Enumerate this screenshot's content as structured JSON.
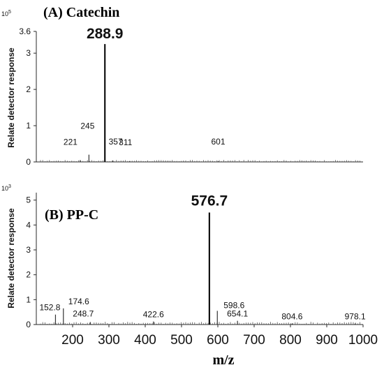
{
  "chart_data": [
    {
      "type": "bar",
      "title": "(A) Catechin",
      "ylabel": "Relate detector response",
      "y_exponent_base": "10",
      "y_exponent_power": "5",
      "xlim": [
        100,
        1000
      ],
      "ylim": [
        0,
        3.6
      ],
      "yticks": [
        {
          "value": 0,
          "label": "0"
        },
        {
          "value": 1,
          "label": "1"
        },
        {
          "value": 2,
          "label": "2"
        },
        {
          "value": 3,
          "label": "3"
        },
        {
          "value": 3.6,
          "label": "3.6"
        }
      ],
      "peaks": [
        {
          "x": 221,
          "y": 0.05,
          "label": "221",
          "major": false
        },
        {
          "x": 245,
          "y": 0.2,
          "label": "245",
          "major": false
        },
        {
          "x": 288.9,
          "y": 3.25,
          "label": "288.9",
          "major": true
        },
        {
          "x": 311,
          "y": 0.04,
          "label": "311",
          "major": false
        },
        {
          "x": 357,
          "y": 0.02,
          "label": "357",
          "major": false
        },
        {
          "x": 601,
          "y": 0.02,
          "label": "601",
          "major": false
        }
      ],
      "grid": false
    },
    {
      "type": "bar",
      "title": "(B) PP-C",
      "ylabel": "Relate detector response",
      "xlabel": "m/z",
      "y_exponent_base": "10",
      "y_exponent_power": "3",
      "xlim": [
        100,
        1000
      ],
      "ylim": [
        0,
        5.3
      ],
      "yticks": [
        {
          "value": 0,
          "label": "0"
        },
        {
          "value": 1,
          "label": "1"
        },
        {
          "value": 2,
          "label": "2"
        },
        {
          "value": 3,
          "label": "3"
        },
        {
          "value": 4,
          "label": "4"
        },
        {
          "value": 5,
          "label": "5"
        }
      ],
      "xticks": [
        {
          "value": 200,
          "label": "200"
        },
        {
          "value": 300,
          "label": "300"
        },
        {
          "value": 400,
          "label": "400"
        },
        {
          "value": 500,
          "label": "500"
        },
        {
          "value": 600,
          "label": "600"
        },
        {
          "value": 700,
          "label": "700"
        },
        {
          "value": 800,
          "label": "800"
        },
        {
          "value": 900,
          "label": "900"
        },
        {
          "value": 1000,
          "label": "1000"
        }
      ],
      "peaks": [
        {
          "x": 152.8,
          "y": 0.4,
          "label": "152.8",
          "major": false
        },
        {
          "x": 174.6,
          "y": 0.65,
          "label": "174.6",
          "major": false
        },
        {
          "x": 248.7,
          "y": 0.1,
          "label": "248.7",
          "major": false
        },
        {
          "x": 422.6,
          "y": 0.12,
          "label": "422.6",
          "major": false
        },
        {
          "x": 576.7,
          "y": 4.5,
          "label": "576.7",
          "major": true
        },
        {
          "x": 598.6,
          "y": 0.55,
          "label": "598.6",
          "major": false
        },
        {
          "x": 654.1,
          "y": 0.15,
          "label": "654.1",
          "major": false
        },
        {
          "x": 804.6,
          "y": 0.04,
          "label": "804.6",
          "major": false
        },
        {
          "x": 978.1,
          "y": 0.04,
          "label": "978.1",
          "major": false
        }
      ],
      "grid": false
    }
  ]
}
